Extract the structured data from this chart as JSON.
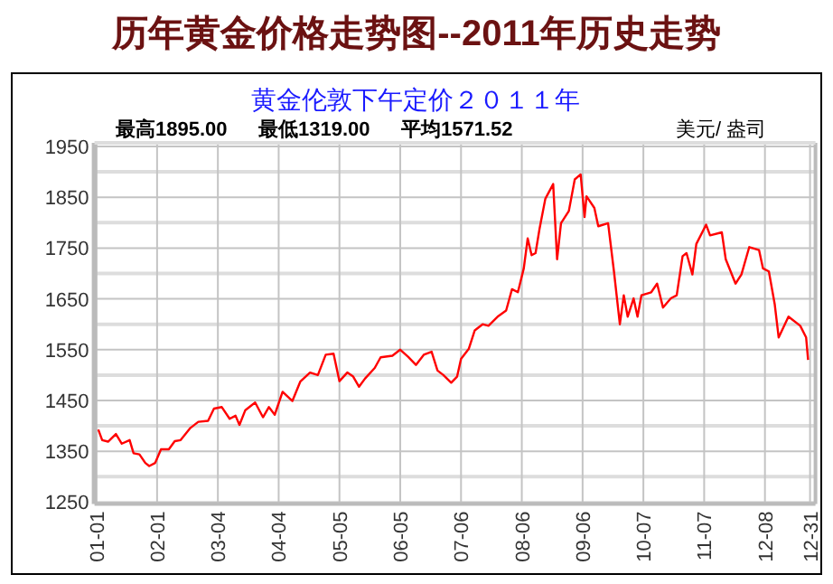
{
  "chart_data": {
    "type": "line",
    "title": "历年黄金价格走势图--2011年历史走势",
    "subtitle": "黄金伦敦下午定价２０１１年",
    "annotations": [
      "最高1895.00",
      "最低1319.00",
      "平均1571.52",
      "美元/ 盎司"
    ],
    "x": [
      "--01-02",
      "--01-04",
      "--01-07",
      "--01-11",
      "--01-14",
      "--01-18",
      "--01-20",
      "--01-23",
      "--01-26",
      "--01-28",
      "--01-31",
      "--02-03",
      "--02-07",
      "--02-10",
      "--02-13",
      "--02-18",
      "--02-22",
      "--02-27",
      "--03-02",
      "--03-06",
      "--03-10",
      "--03-13",
      "--03-15",
      "--03-18",
      "--03-23",
      "--03-27",
      "--03-30",
      "--04-02",
      "--04-06",
      "--04-11",
      "--04-15",
      "--04-20",
      "--04-24",
      "--04-28",
      "--05-02",
      "--05-05",
      "--05-09",
      "--05-12",
      "--05-15",
      "--05-18",
      "--05-23",
      "--05-26",
      "--06-01",
      "--06-05",
      "--06-09",
      "--06-13",
      "--06-17",
      "--06-21",
      "--06-24",
      "--06-27",
      "--07-01",
      "--07-04",
      "--07-06",
      "--07-10",
      "--07-13",
      "--07-17",
      "--07-20",
      "--07-25",
      "--07-29",
      "--08-01",
      "--08-04",
      "--08-07",
      "--08-09",
      "--08-11",
      "--08-13",
      "--08-15",
      "--08-18",
      "--08-22",
      "--08-24",
      "--08-26",
      "--08-30",
      "--09-02",
      "--09-05",
      "--09-07",
      "--09-08",
      "--09-12",
      "--09-14",
      "--09-19",
      "--09-22",
      "--09-25",
      "--09-27",
      "--09-29",
      "--10-02",
      "--10-04",
      "--10-06",
      "--10-11",
      "--10-14",
      "--10-17",
      "--10-21",
      "--10-24",
      "--10-27",
      "--10-29",
      "--11-01",
      "--11-03",
      "--11-08",
      "--11-10",
      "--11-16",
      "--11-18",
      "--11-23",
      "--11-26",
      "--11-30",
      "--12-05",
      "--12-07",
      "--12-10",
      "--12-13",
      "--12-15",
      "--12-20",
      "--12-26",
      "--12-29",
      "--12-30"
    ],
    "series": [
      {
        "color": "#ff0000",
        "values": [
          1393,
          1372,
          1369,
          1384,
          1365,
          1372,
          1346,
          1344,
          1327,
          1321,
          1327,
          1354,
          1354,
          1370,
          1372,
          1396,
          1408,
          1410,
          1434,
          1437,
          1414,
          1420,
          1402,
          1431,
          1446,
          1417,
          1437,
          1422,
          1467,
          1449,
          1487,
          1505,
          1500,
          1540,
          1542,
          1488,
          1505,
          1497,
          1477,
          1493,
          1514,
          1535,
          1538,
          1550,
          1536,
          1520,
          1540,
          1546,
          1509,
          1500,
          1485,
          1497,
          1532,
          1552,
          1588,
          1600,
          1597,
          1616,
          1627,
          1669,
          1663,
          1710,
          1769,
          1736,
          1740,
          1787,
          1847,
          1876,
          1728,
          1799,
          1823,
          1885,
          1895,
          1811,
          1852,
          1829,
          1793,
          1799,
          1704,
          1600,
          1657,
          1615,
          1651,
          1615,
          1657,
          1663,
          1680,
          1633,
          1651,
          1657,
          1734,
          1740,
          1698,
          1758,
          1796,
          1775,
          1781,
          1728,
          1680,
          1698,
          1752,
          1746,
          1710,
          1704,
          1639,
          1574,
          1615,
          1597,
          1574,
          1530
        ]
      }
    ],
    "xlim": [
      "--01-01",
      "--12-31"
    ],
    "xticks": [
      {
        "value": "--01-01",
        "label": "01-01"
      },
      {
        "value": "--02-01",
        "label": "02-01"
      },
      {
        "value": "--03-04",
        "label": "03-04"
      },
      {
        "value": "--04-04",
        "label": "04-04"
      },
      {
        "value": "--05-05",
        "label": "05-05"
      },
      {
        "value": "--06-05",
        "label": "06-05"
      },
      {
        "value": "--07-06",
        "label": "07-06"
      },
      {
        "value": "--08-06",
        "label": "08-06"
      },
      {
        "value": "--09-06",
        "label": "09-06"
      },
      {
        "value": "--10-07",
        "label": "10-07"
      },
      {
        "value": "--11-07",
        "label": "11-07"
      },
      {
        "value": "--12-08",
        "label": "12-08"
      },
      {
        "value": "--12-31",
        "label": "12-31"
      }
    ],
    "ylim": [
      1250,
      1950
    ],
    "yticks": [
      1250,
      {
        "value": 1300,
        "label": null
      },
      1350,
      {
        "value": 1400,
        "label": null
      },
      1450,
      {
        "value": 1500,
        "label": null
      },
      1550,
      {
        "value": 1600,
        "label": null
      },
      1650,
      {
        "value": 1700,
        "label": null
      },
      1750,
      {
        "value": 1800,
        "label": null
      },
      1850,
      {
        "value": 1900,
        "label": null
      },
      1950
    ],
    "grid": true
  }
}
